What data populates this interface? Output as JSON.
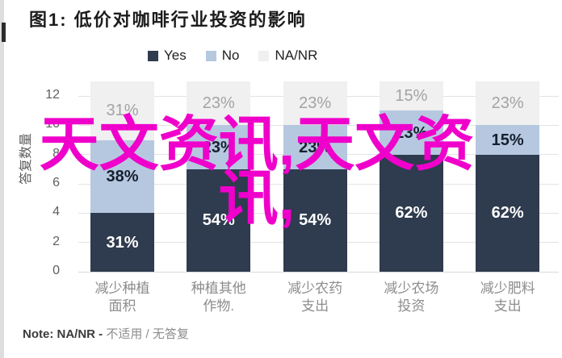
{
  "title": "图1: 低价对咖啡行业投资的影响",
  "legend": [
    {
      "label": "Yes",
      "color": "#2F3B4E"
    },
    {
      "label": "No",
      "color": "#B6C8E0"
    },
    {
      "label": "NA/NR",
      "color": "#F0F0F0"
    }
  ],
  "watermark": {
    "text": "天文资讯,天文资讯,",
    "lines": [
      "天文资讯,天文资",
      "讯,"
    ],
    "color": "#EF00CB"
  },
  "note": {
    "prefix": "Note: NA/NR - ",
    "body": "不适用 / 无答复"
  },
  "chart_data": {
    "type": "bar",
    "stacked": true,
    "title": "图1: 低价对咖啡行业投资的影响",
    "xlabel": "",
    "ylabel": "答复数量",
    "ylim": [
      0,
      13
    ],
    "yticks": [
      0,
      2,
      4,
      6,
      8,
      10,
      12
    ],
    "grid": "horizontal",
    "legend_position": "top",
    "total_responses_per_category": 13,
    "categories": [
      "减少种植面积",
      "种植其他作物.",
      "减少农药支出",
      "减少农场投资",
      "减少肥料支出"
    ],
    "categories_display": [
      [
        "减少种植",
        "面积"
      ],
      [
        "种植其他",
        "作物."
      ],
      [
        "减少农药",
        "支出"
      ],
      [
        "减少农场",
        "投资"
      ],
      [
        "减少肥料",
        "支出"
      ]
    ],
    "series": [
      {
        "name": "Yes",
        "color": "#2F3B4E",
        "values": [
          4,
          7,
          7,
          8,
          8
        ],
        "labels": [
          "31%",
          "54%",
          "54%",
          "62%",
          "62%"
        ]
      },
      {
        "name": "No",
        "color": "#B6C8E0",
        "values": [
          5,
          3,
          3,
          3,
          2
        ],
        "labels": [
          "38%",
          "23%",
          "23%",
          "23%",
          "15%"
        ]
      },
      {
        "name": "NA/NR",
        "color": "#F0F0F0",
        "values": [
          4,
          3,
          3,
          2,
          3
        ],
        "labels": [
          "31%",
          "23%",
          "23%",
          "15%",
          "23%"
        ]
      }
    ]
  }
}
